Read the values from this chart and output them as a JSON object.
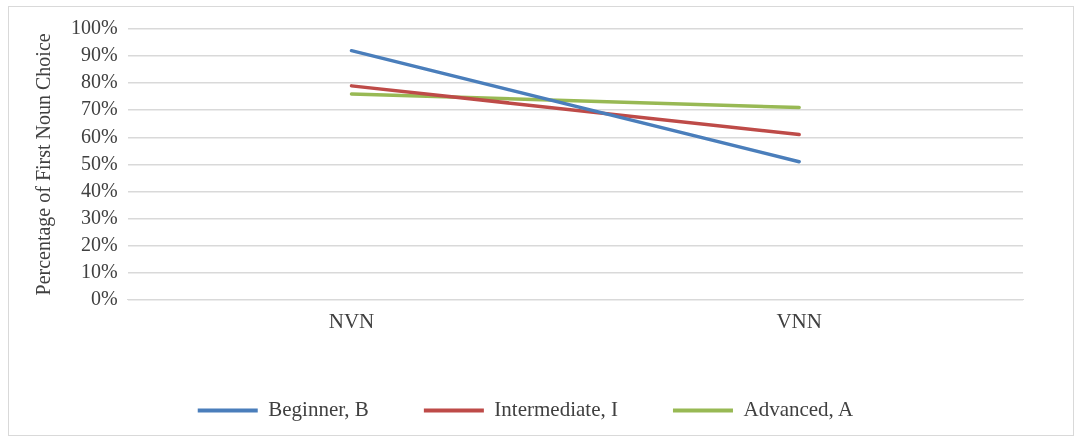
{
  "chart_data": {
    "type": "line",
    "ylabel": "Percentage of First Noun Choice",
    "categories": [
      "NVN",
      "VNN"
    ],
    "series": [
      {
        "name": "Beginner, B",
        "color": "#4a7ebb",
        "values": [
          92,
          51
        ]
      },
      {
        "name": "Intermediate, I",
        "color": "#be4b48",
        "values": [
          79,
          61
        ]
      },
      {
        "name": "Advanced, A",
        "color": "#98b954",
        "values": [
          76,
          71
        ]
      }
    ],
    "ylim": [
      0,
      100
    ],
    "yticks": [
      {
        "value": 0,
        "label": "0%"
      },
      {
        "value": 10,
        "label": "10%"
      },
      {
        "value": 20,
        "label": "20%"
      },
      {
        "value": 30,
        "label": "30%"
      },
      {
        "value": 40,
        "label": "40%"
      },
      {
        "value": 50,
        "label": "50%"
      },
      {
        "value": 60,
        "label": "60%"
      },
      {
        "value": 70,
        "label": "70%"
      },
      {
        "value": 80,
        "label": "80%"
      },
      {
        "value": 90,
        "label": "90%"
      },
      {
        "value": 100,
        "label": "100%"
      }
    ],
    "grid": "y",
    "legend": "bottom",
    "marker": "none",
    "line_style": "solid"
  }
}
